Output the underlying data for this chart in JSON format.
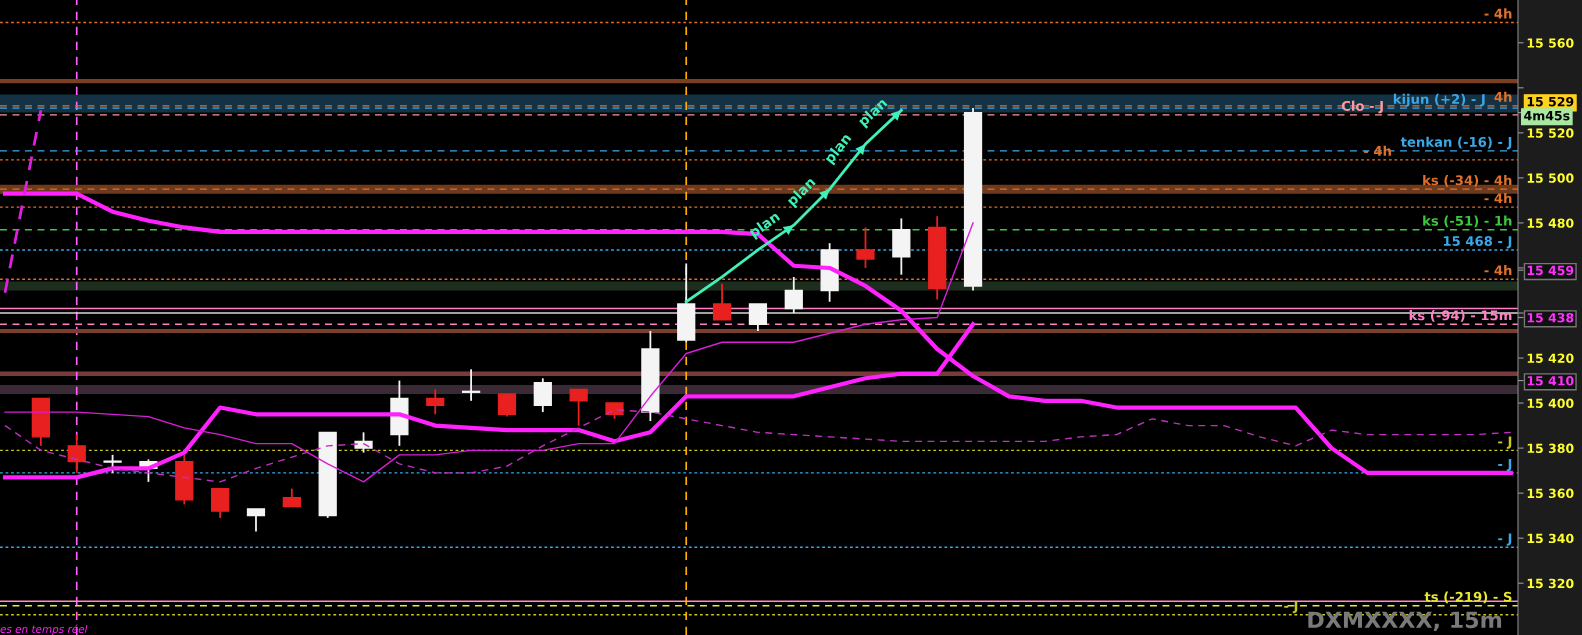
{
  "chart_data": {
    "type": "candlestick",
    "categories": [
      null,
      null,
      null,
      null,
      null,
      null,
      null,
      null,
      null,
      null,
      null,
      null,
      null,
      null,
      null,
      null,
      null,
      null,
      null,
      null,
      null,
      null,
      null,
      null,
      null,
      null,
      null,
      null,
      null,
      null,
      null,
      null,
      null,
      null,
      null,
      null,
      null,
      null,
      null,
      null,
      null,
      null,
      null
    ],
    "ohlc": [
      null,
      [
        15402,
        15402,
        15381,
        15385
      ],
      [
        15381,
        15386,
        15369,
        15374
      ],
      [
        15374,
        15377,
        15369,
        15374
      ],
      [
        15371,
        15375,
        15365,
        15374
      ],
      [
        15374,
        15377,
        15355,
        15357
      ],
      [
        15362,
        15362,
        15349,
        15352
      ],
      [
        15350,
        15353,
        15343,
        15353
      ],
      [
        15358,
        15362,
        15354,
        15354
      ],
      [
        15350,
        15387,
        15349,
        15387
      ],
      [
        15380,
        15387,
        15378,
        15383
      ],
      [
        15386,
        15410,
        15381,
        15402
      ],
      [
        15402,
        15406,
        15395,
        15399
      ],
      [
        15405,
        15415,
        15401,
        15405
      ],
      [
        15404,
        15404,
        15394,
        15395
      ],
      [
        15399,
        15411,
        15396,
        15409
      ],
      [
        15406,
        15406,
        15390,
        15401
      ],
      [
        15400,
        15400,
        15393,
        15395
      ],
      [
        15396,
        15432,
        15392,
        15424
      ],
      [
        15428,
        15462,
        15427,
        15444
      ],
      [
        15444,
        15453,
        15437,
        15437
      ],
      [
        15435,
        15444,
        15432,
        15444
      ],
      [
        15442,
        15456,
        15440,
        15450
      ],
      [
        15450,
        15471,
        15445,
        15468
      ],
      [
        15468,
        15478,
        15460,
        15464
      ],
      [
        15465,
        15482,
        15457,
        15477
      ],
      [
        15478,
        15483,
        15446,
        15451
      ],
      [
        15452,
        15531,
        15450,
        15529
      ],
      null,
      null,
      null,
      null,
      null,
      null,
      null,
      null,
      null,
      null,
      null,
      null,
      null,
      null,
      null
    ],
    "colors": [
      null,
      "#e82020",
      "#e82020",
      "#f4f4f4",
      "#f4f4f4",
      "#e82020",
      "#e82020",
      "#f4f4f4",
      "#e82020",
      "#f4f4f4",
      "#f4f4f4",
      "#f4f4f4",
      "#e82020",
      "#f4f4f4",
      "#e82020",
      "#f4f4f4",
      "#e82020",
      "#e82020",
      "#f4f4f4",
      "#f4f4f4",
      "#e82020",
      "#f4f4f4",
      "#f4f4f4",
      "#f4f4f4",
      "#e82020",
      "#f4f4f4",
      "#e82020",
      "#f4f4f4",
      null,
      null,
      null,
      null,
      null,
      null,
      null,
      null,
      null,
      null,
      null,
      null,
      null,
      null,
      null
    ],
    "series": [
      {
        "type": "line",
        "color": "#ff22ff",
        "line_style": "solid",
        "values": [
          15493,
          15493,
          15493,
          15485,
          15481,
          15478,
          15476,
          15476,
          15476,
          15476,
          15476,
          15476,
          15476,
          15476,
          15476,
          15476,
          15476,
          15476,
          15476,
          15476,
          15476,
          15475,
          15461,
          15460,
          15452,
          15441,
          15424,
          15412,
          15403,
          15401,
          15401,
          15398,
          15398,
          15398,
          15398,
          15398,
          15398,
          15380,
          15369,
          15369,
          15369,
          15369,
          15369
        ]
      },
      {
        "type": "line",
        "color": "#ff22ff",
        "line_style": "solid",
        "values": [
          15367,
          15367,
          15367,
          15371,
          15371,
          15378,
          15398,
          15395,
          15395,
          15395,
          15395,
          15395,
          15390,
          15389,
          15388,
          15388,
          15388,
          15383,
          15387,
          15403,
          15403,
          15403,
          15403,
          15407,
          15411,
          15413,
          15413,
          15435,
          null,
          null,
          null,
          null,
          null,
          null,
          null,
          null,
          null,
          null,
          null,
          null,
          null,
          null,
          null
        ]
      },
      {
        "type": "line",
        "color": "#d81ed8",
        "line_style": "solid",
        "values": [
          15396,
          15396,
          15396,
          15395,
          15394,
          15389,
          15386,
          15382,
          15382,
          15373,
          15365,
          15377,
          15377,
          15379,
          15379,
          15379,
          15382,
          15382,
          15403,
          15422,
          15427,
          15427,
          15427,
          15431,
          15435,
          15437,
          15438,
          15480,
          null,
          null,
          null,
          null,
          null,
          null,
          null,
          null,
          null,
          null,
          null,
          null,
          null,
          null,
          null
        ]
      },
      {
        "type": "line",
        "color": "#c030c0",
        "line_style": "dashed",
        "values": [
          15390,
          15379,
          15375,
          15371,
          15369,
          15367,
          15365,
          15371,
          15376,
          15381,
          15382,
          15373,
          15369,
          15369,
          15372,
          15381,
          15389,
          15397,
          15396,
          15393,
          15390,
          15387,
          15386,
          15385,
          15384,
          15383,
          15383,
          15383,
          15383,
          15383,
          15385,
          15386,
          15393,
          15390,
          15390,
          15385,
          15381,
          15388,
          15386,
          15386,
          15386,
          15386,
          15387
        ]
      },
      {
        "type": "line",
        "color": "#e020e0",
        "line_style": "dashed",
        "values": [
          15449,
          15530,
          null,
          null,
          null,
          null,
          null,
          null,
          null,
          null,
          null,
          null,
          null,
          null,
          null,
          null,
          null,
          null,
          null,
          null,
          null,
          null,
          null,
          null,
          null,
          null,
          null,
          null,
          null,
          null,
          null,
          null,
          null,
          null,
          null,
          null,
          null,
          null,
          null,
          null,
          null,
          null,
          null
        ]
      },
      {
        "type": "line",
        "color": "#40f0b8",
        "line_style": "solid",
        "values": [
          null,
          null,
          null,
          null,
          null,
          null,
          null,
          null,
          null,
          null,
          null,
          null,
          null,
          null,
          null,
          null,
          null,
          null,
          null,
          15445,
          15456,
          15468,
          15479,
          15495,
          15515,
          15530,
          null,
          null,
          null,
          null,
          null,
          null,
          null,
          null,
          null,
          null,
          null,
          null,
          null,
          null,
          null,
          null,
          null
        ],
        "value_labels": [
          null,
          null,
          null,
          null,
          null,
          null,
          null,
          null,
          null,
          null,
          null,
          null,
          null,
          null,
          null,
          null,
          null,
          null,
          null,
          null,
          null,
          null,
          "plan",
          "plan",
          "plan",
          "plan",
          null,
          null,
          null,
          null,
          null,
          null,
          null,
          null,
          null,
          null,
          null,
          null,
          null,
          null,
          null,
          null,
          null
        ]
      }
    ],
    "ylim": [
      15297,
      15579
    ],
    "yticks": [
      {
        "value": 15320,
        "label": "15 320"
      },
      {
        "value": 15340,
        "label": "15 340"
      },
      {
        "value": 15360,
        "label": "15 360"
      },
      {
        "value": 15380,
        "label": "15 380"
      },
      {
        "value": 15400,
        "label": "15 400"
      },
      {
        "value": 15410,
        "label": "15 410"
      },
      {
        "value": 15420,
        "label": "15 420"
      },
      {
        "value": 15438,
        "label": "15 438"
      },
      {
        "value": 15440,
        "label": null
      },
      {
        "value": 15459,
        "label": "15 459"
      },
      {
        "value": 15460,
        "label": null
      },
      {
        "value": 15480,
        "label": "15 480"
      },
      {
        "value": 15500,
        "label": "15 500"
      },
      {
        "value": 15520,
        "label": "15 520"
      },
      {
        "value": 15529,
        "label": "15 529"
      },
      {
        "value": 15540,
        "label": null
      },
      {
        "value": 15560,
        "label": "15 560"
      }
    ],
    "tick_labels": "y",
    "grid": false,
    "legend": false,
    "ref_lines": [
      {
        "axis": "y",
        "value": 15569,
        "label": "- 4h",
        "color": "#e0702a",
        "line_style": "dotted"
      },
      {
        "axis": "y",
        "value": 15543,
        "color": "#7a3e22",
        "line_style": "solid"
      },
      {
        "axis": "y",
        "value": 15532,
        "label": "4h",
        "color": "#e0702a",
        "line_style": "dashed"
      },
      {
        "axis": "y",
        "value": 15531,
        "label": "kijun (+2) - J",
        "color": "#3aa8e8",
        "line_style": "dashed"
      },
      {
        "axis": "y",
        "value": 15528,
        "label": "Clo - J",
        "color": "#ff9a9a",
        "line_style": "dashed"
      },
      {
        "axis": "y",
        "value": 15512,
        "label": "tenkan (-16) - J",
        "color": "#3aa8e8",
        "line_style": "dashed"
      },
      {
        "axis": "y",
        "value": 15508,
        "label": "- 4h",
        "color": "#e0702a",
        "line_style": "dotted"
      },
      {
        "axis": "y",
        "value": 15495,
        "label": "ks (-34) - 4h",
        "color": "#e0702a",
        "line_style": "dashed"
      },
      {
        "axis": "y",
        "value": 15487,
        "label": "- 4h",
        "color": "#e0702a",
        "line_style": "dotted"
      },
      {
        "axis": "y",
        "value": 15477,
        "label": "ks (-51) - 1h",
        "color": "#3cc83c",
        "line_style": "dashed"
      },
      {
        "axis": "y",
        "value": 15468,
        "label": "15 468 - J",
        "color": "#3aa8e8",
        "line_style": "dotted"
      },
      {
        "axis": "y",
        "value": 15455,
        "label": "- 4h",
        "color": "#e0702a",
        "line_style": "dotted"
      },
      {
        "axis": "y",
        "value": 15442,
        "color": "#ff80c8",
        "line_style": "solid"
      },
      {
        "axis": "y",
        "value": 15440,
        "color": "#d8d8d8",
        "line_style": "solid"
      },
      {
        "axis": "y",
        "value": 15435,
        "label": "ks (-94) - 15m",
        "color": "#ff80c8",
        "line_style": "dashed"
      },
      {
        "axis": "y",
        "value": 15432,
        "color": "#7a3e30",
        "line_style": "solid"
      },
      {
        "axis": "y",
        "value": 15379,
        "label": "- J",
        "color": "#c8c820",
        "line_style": "dotted"
      },
      {
        "axis": "y",
        "value": 15369,
        "label": "- J",
        "color": "#3aa8e8",
        "line_style": "dotted"
      },
      {
        "axis": "y",
        "value": 15336,
        "label": "- J",
        "color": "#3aa8e8",
        "line_style": "dotted"
      },
      {
        "axis": "y",
        "value": 15312,
        "color": "#ff90c0",
        "line_style": "solid"
      },
      {
        "axis": "y",
        "value": 15310,
        "label": "ts (-219) - S",
        "color": "#e8e830",
        "line_style": "dashed"
      },
      {
        "axis": "y",
        "value": 15306,
        "label": "- J",
        "color": "#c8c820",
        "line_style": "dotted"
      }
    ],
    "bands": [
      {
        "axis": "y",
        "from": 15529,
        "to": 15537,
        "color": "#143244"
      },
      {
        "axis": "y",
        "from": 15493,
        "to": 15497,
        "color": "#6e3a1e"
      },
      {
        "axis": "y",
        "from": 15450,
        "to": 15454,
        "color": "#1e2e1e"
      },
      {
        "axis": "y",
        "from": 15412,
        "to": 15414,
        "color": "#7a3a3a"
      },
      {
        "axis": "y",
        "from": 15404,
        "to": 15408,
        "color": "#3a2a36"
      }
    ],
    "annotations": [
      "4m45s",
      "DXMXXXX, 15m",
      "es en temps réel"
    ]
  }
}
